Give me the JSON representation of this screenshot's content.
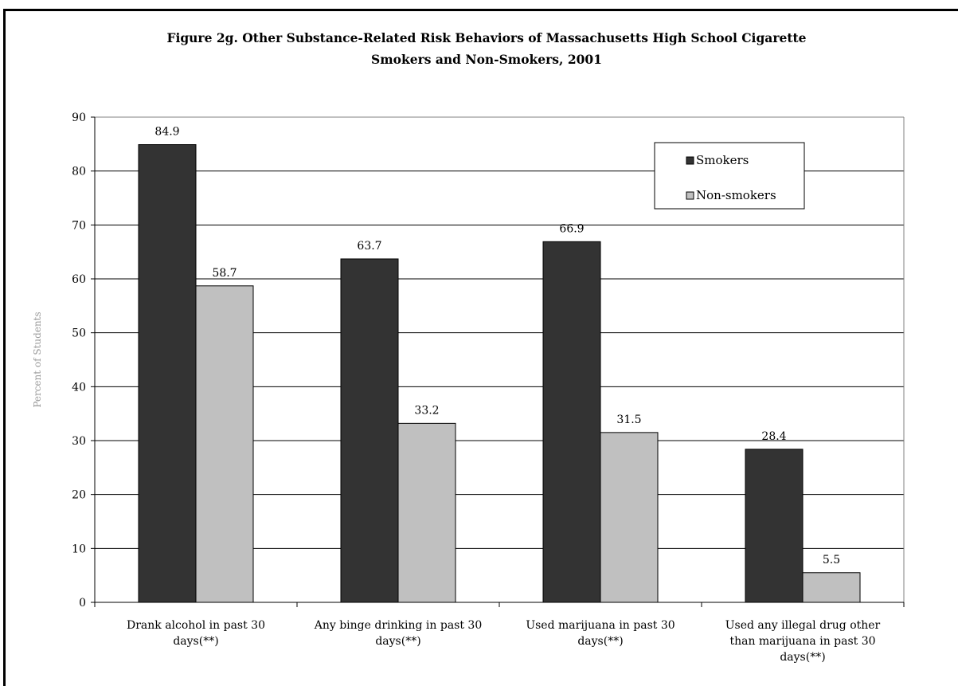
{
  "chart_data": {
    "type": "bar",
    "title_lines": [
      "Figure 2g.  Other Substance-Related Risk Behaviors of Massachusetts High School Cigarette",
      "Smokers and Non-Smokers, 2001"
    ],
    "ylabel": "Percent of Students",
    "xlabel": "",
    "ylim": [
      0,
      90
    ],
    "yticks": [
      "0",
      "10",
      "20",
      "30",
      "40",
      "50",
      "60",
      "70",
      "80",
      "90"
    ],
    "grid": true,
    "legend_position": "top-right",
    "categories": [
      [
        "Drank alcohol in past 30",
        "days(**)"
      ],
      [
        "Any binge drinking in past 30",
        "days(**)"
      ],
      [
        "Used marijuana in past 30",
        "days(**)"
      ],
      [
        "Used any illegal drug other",
        "than marijuana in past 30",
        "days(**)"
      ]
    ],
    "series": [
      {
        "name": "Smokers",
        "color": "#333333",
        "values": [
          84.9,
          63.7,
          66.9,
          28.4
        ],
        "labels": [
          "84.9",
          "63.7",
          "66.9",
          "28.4"
        ]
      },
      {
        "name": "Non-smokers",
        "color": "#c0c0c0",
        "values": [
          58.7,
          33.2,
          31.5,
          5.5
        ],
        "labels": [
          "58.7",
          "33.2",
          "31.5",
          "5.5"
        ]
      }
    ]
  }
}
